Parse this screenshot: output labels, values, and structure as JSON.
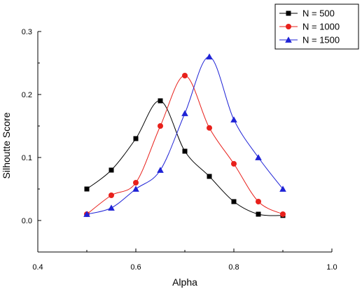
{
  "chart_data": {
    "type": "line",
    "xlabel": "Alpha",
    "ylabel": "Silhoutte Score",
    "xlim": [
      0.4,
      1.0
    ],
    "ylim": [
      -0.05,
      0.3
    ],
    "x_ticks": [
      "0.4",
      "0.6",
      "0.8",
      "1.0"
    ],
    "y_ticks": [
      "0.0",
      "0.1",
      "0.2",
      "0.3"
    ],
    "x": [
      0.5,
      0.55,
      0.6,
      0.65,
      0.7,
      0.75,
      0.8,
      0.85,
      0.9
    ],
    "legend_position": "top-right",
    "grid": false,
    "series": [
      {
        "name": "N = 500",
        "color": "#000000",
        "marker": "square",
        "values": [
          0.05,
          0.08,
          0.13,
          0.19,
          0.11,
          0.07,
          0.03,
          0.01,
          0.008
        ]
      },
      {
        "name": "N = 1000",
        "color": "#e8201b",
        "marker": "circle",
        "values": [
          0.01,
          0.04,
          0.06,
          0.15,
          0.23,
          0.147,
          0.09,
          0.03,
          0.01
        ]
      },
      {
        "name": "N = 1500",
        "color": "#1f23d6",
        "marker": "triangle",
        "values": [
          0.01,
          0.02,
          0.05,
          0.08,
          0.17,
          0.26,
          0.16,
          0.1,
          0.05
        ]
      }
    ]
  }
}
